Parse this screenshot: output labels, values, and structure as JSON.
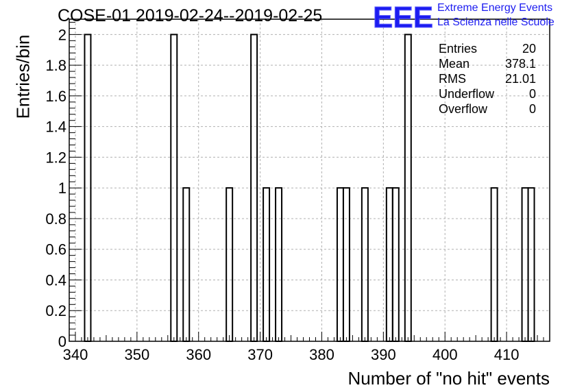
{
  "title": "COSE-01 2019-02-24--2019-02-25",
  "logo": {
    "mark": "EEE",
    "line1": "Extreme Energy Events",
    "line2": "La Scienza nelle Scuole",
    "color": "#1c1cf0"
  },
  "stats": [
    {
      "label": "Entries",
      "value": "20"
    },
    {
      "label": "Mean",
      "value": "378.1"
    },
    {
      "label": "RMS",
      "value": "21.01"
    },
    {
      "label": "Underflow",
      "value": "0"
    },
    {
      "label": "Overflow",
      "value": "0"
    }
  ],
  "chart_data": {
    "type": "bar",
    "histogram": true,
    "xlabel": "Number of \"no hit\" events",
    "ylabel": "Entries/bin",
    "xlim": [
      339,
      417
    ],
    "ylim": [
      0,
      2.1
    ],
    "xticks": [
      340,
      350,
      360,
      370,
      380,
      390,
      400,
      410
    ],
    "yticks": [
      0,
      0.2,
      0.4,
      0.6,
      0.8,
      1,
      1.2,
      1.4,
      1.6,
      1.8,
      2
    ],
    "ytick_labels": [
      "0",
      "0.2",
      "0.4",
      "0.6",
      "0.8",
      "1",
      "1.2",
      "1.4",
      "1.6",
      "1.8",
      "2"
    ],
    "bin_width": 1,
    "bins": [
      {
        "x": 342,
        "count": 2
      },
      {
        "x": 356,
        "count": 2
      },
      {
        "x": 358,
        "count": 1
      },
      {
        "x": 365,
        "count": 1
      },
      {
        "x": 369,
        "count": 2
      },
      {
        "x": 371,
        "count": 1
      },
      {
        "x": 373,
        "count": 1
      },
      {
        "x": 383,
        "count": 1
      },
      {
        "x": 384,
        "count": 1
      },
      {
        "x": 387,
        "count": 1
      },
      {
        "x": 391,
        "count": 1
      },
      {
        "x": 392,
        "count": 1
      },
      {
        "x": 394,
        "count": 2
      },
      {
        "x": 408,
        "count": 1
      },
      {
        "x": 413,
        "count": 1
      },
      {
        "x": 414,
        "count": 1
      }
    ],
    "grid": true
  }
}
